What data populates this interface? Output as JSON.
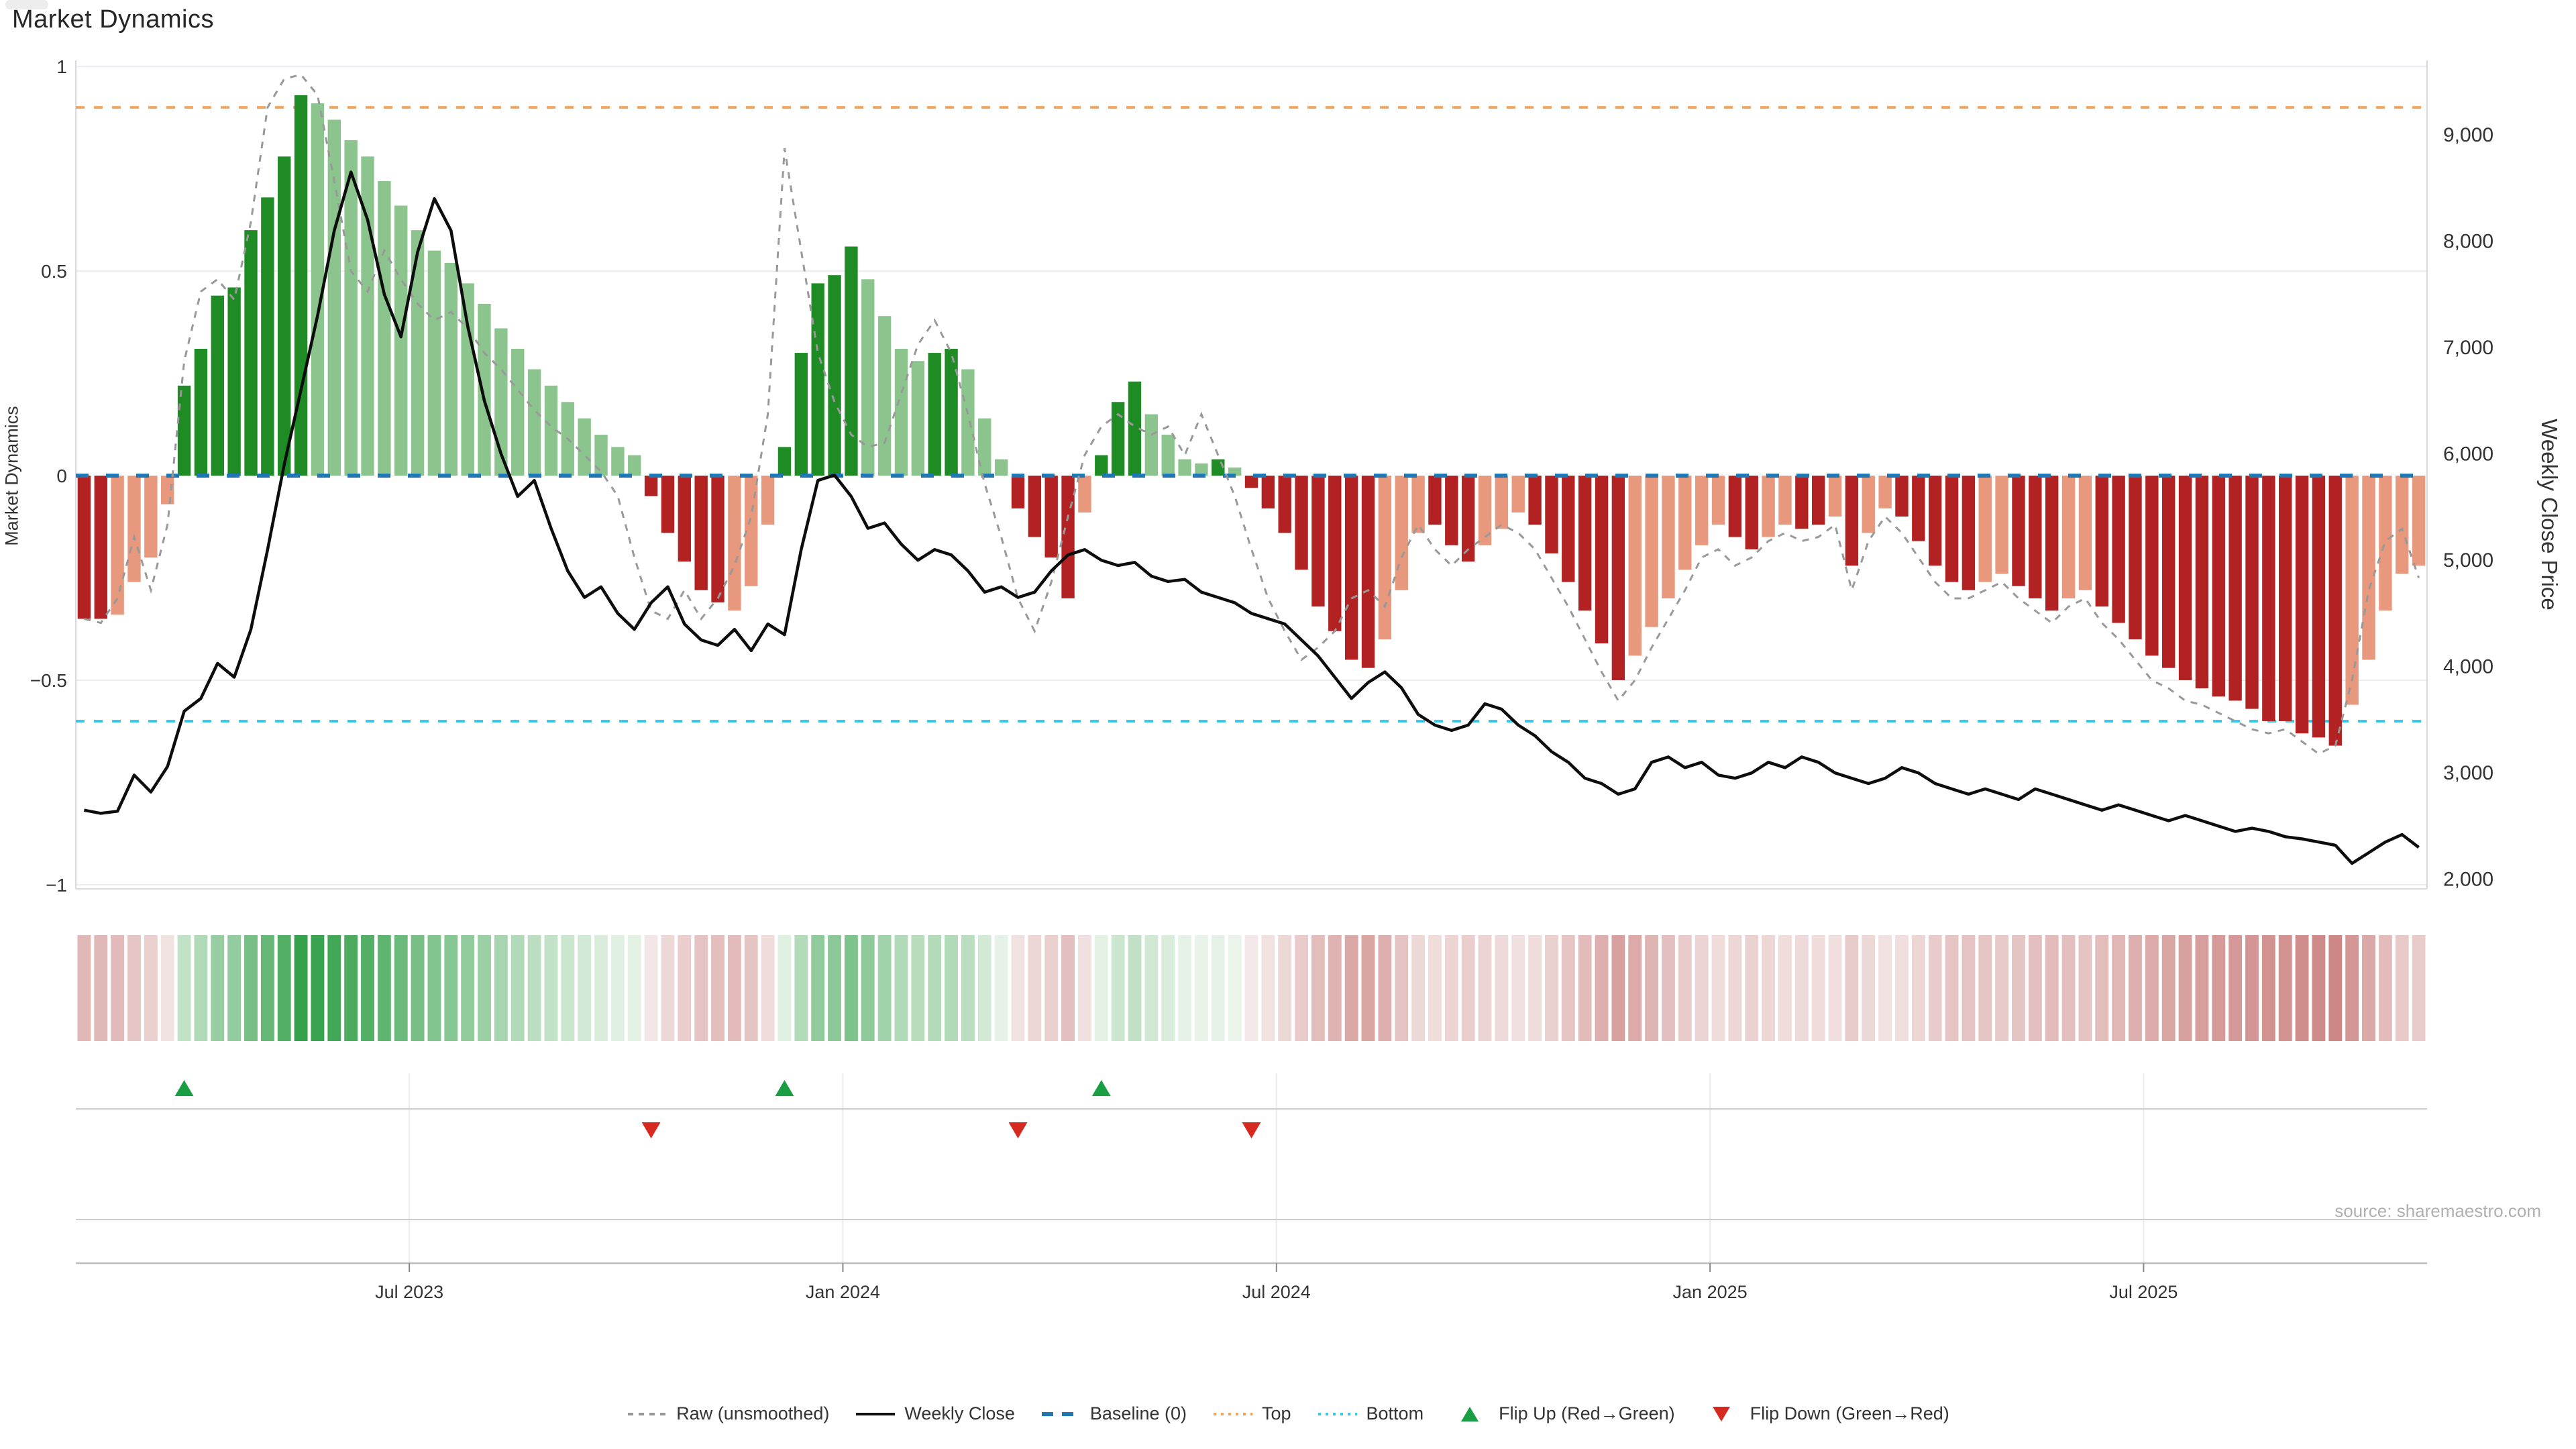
{
  "title": "Market Dynamics",
  "source_note": "source: sharemaestro.com",
  "left_axis": {
    "title": "Market Dynamics",
    "tick_values": [
      1,
      0.5,
      0,
      -0.5,
      -1
    ],
    "tick_labels": [
      "1",
      "0.5",
      "0",
      "−0.5",
      "−1"
    ]
  },
  "right_axis": {
    "title": "Weekly Close Price",
    "tick_values": [
      2000,
      3000,
      4000,
      5000,
      6000,
      7000,
      8000,
      9000
    ],
    "tick_labels": [
      "2,000",
      "3,000",
      "4,000",
      "5,000",
      "6,000",
      "7,000",
      "8,000",
      "9,000"
    ]
  },
  "x_axis": {
    "tick_weeks": [
      19.5,
      45.5,
      71.5,
      97.5,
      123.5
    ],
    "tick_labels": [
      "Jul 2023",
      "Jan 2024",
      "Jul 2024",
      "Jan 2025",
      "Jul 2025"
    ]
  },
  "legend": {
    "items": [
      {
        "swatch": "dashed-line",
        "color": "#999999",
        "label": "Raw (unsmoothed)"
      },
      {
        "swatch": "solid-line",
        "color": "#111111",
        "label": "Weekly Close"
      },
      {
        "swatch": "dash-pair",
        "color": "#1f77b4",
        "label": "Baseline (0)"
      },
      {
        "swatch": "dotted-line",
        "color": "#f2a45f",
        "label": "Top"
      },
      {
        "swatch": "dotted-line",
        "color": "#3cc9e8",
        "label": "Bottom"
      },
      {
        "swatch": "triangle-up",
        "color": "#1a9e44",
        "label": "Flip Up (Red→Green)"
      },
      {
        "swatch": "triangle-down",
        "color": "#d62a20",
        "label": "Flip Down (Green→Red)"
      }
    ]
  },
  "colors": {
    "bar_pos_strong": "#1f8b24",
    "bar_pos_soft": "#8cc48e",
    "bar_neg_strong": "#b22222",
    "bar_neg_soft": "#e8987c",
    "baseline": "#1f77b4",
    "top_line": "#f2a45f",
    "bottom_line": "#3cc9e8",
    "raw_line": "#999999",
    "close_line": "#0d0d0d",
    "flip_up": "#1a9e44",
    "flip_down": "#d62a20",
    "grid": "#ececf2",
    "spine": "#d8d8de",
    "panel_line": "#cccccc",
    "axis_line": "#bbbbbb",
    "tick_text": "#333333"
  },
  "chart_data": {
    "type": "bar+line combo with heatmap strip and flip markers",
    "frequency": "weekly",
    "weeks": 141,
    "left_ylim": [
      -1.01,
      1.015
    ],
    "right_ylim": [
      1910,
      9700
    ],
    "baseline": 0,
    "top_threshold": 0.9,
    "bottom_threshold": -0.6,
    "grid": "horizontal only in main panel",
    "legend_position": "bottom center",
    "oscillator_values": [
      -0.35,
      -0.35,
      -0.34,
      -0.26,
      -0.2,
      -0.07,
      0.22,
      0.31,
      0.44,
      0.46,
      0.6,
      0.68,
      0.78,
      0.93,
      0.91,
      0.87,
      0.82,
      0.78,
      0.72,
      0.66,
      0.6,
      0.55,
      0.52,
      0.47,
      0.42,
      0.36,
      0.31,
      0.26,
      0.22,
      0.18,
      0.14,
      0.1,
      0.07,
      0.05,
      -0.05,
      -0.14,
      -0.21,
      -0.28,
      -0.31,
      -0.33,
      -0.27,
      -0.12,
      0.07,
      0.3,
      0.47,
      0.49,
      0.56,
      0.48,
      0.39,
      0.31,
      0.28,
      0.3,
      0.31,
      0.26,
      0.14,
      0.04,
      -0.08,
      -0.15,
      -0.2,
      -0.3,
      -0.09,
      0.05,
      0.18,
      0.23,
      0.15,
      0.1,
      0.04,
      0.03,
      0.04,
      0.02,
      -0.03,
      -0.08,
      -0.14,
      -0.23,
      -0.32,
      -0.38,
      -0.45,
      -0.47,
      -0.4,
      -0.28,
      -0.14,
      -0.12,
      -0.17,
      -0.21,
      -0.17,
      -0.13,
      -0.09,
      -0.12,
      -0.19,
      -0.26,
      -0.33,
      -0.41,
      -0.5,
      -0.44,
      -0.37,
      -0.3,
      -0.23,
      -0.17,
      -0.12,
      -0.15,
      -0.18,
      -0.15,
      -0.12,
      -0.13,
      -0.12,
      -0.1,
      -0.22,
      -0.14,
      -0.08,
      -0.1,
      -0.16,
      -0.22,
      -0.26,
      -0.28,
      -0.26,
      -0.24,
      -0.27,
      -0.3,
      -0.33,
      -0.3,
      -0.28,
      -0.32,
      -0.36,
      -0.4,
      -0.44,
      -0.47,
      -0.5,
      -0.52,
      -0.54,
      -0.55,
      -0.57,
      -0.6,
      -0.6,
      -0.63,
      -0.64,
      -0.66,
      -0.56,
      -0.45,
      -0.33,
      -0.24,
      -0.22
    ],
    "oscillator_tone": [
      "R",
      "R",
      "r",
      "r",
      "r",
      "r",
      "G",
      "G",
      "G",
      "G",
      "G",
      "G",
      "G",
      "G",
      "g",
      "g",
      "g",
      "g",
      "g",
      "g",
      "g",
      "g",
      "g",
      "g",
      "g",
      "g",
      "g",
      "g",
      "g",
      "g",
      "g",
      "g",
      "g",
      "g",
      "R",
      "R",
      "R",
      "R",
      "R",
      "r",
      "r",
      "r",
      "G",
      "G",
      "G",
      "G",
      "G",
      "g",
      "g",
      "g",
      "g",
      "G",
      "G",
      "g",
      "g",
      "g",
      "R",
      "R",
      "R",
      "R",
      "r",
      "G",
      "G",
      "G",
      "g",
      "g",
      "g",
      "g",
      "G",
      "g",
      "R",
      "R",
      "R",
      "R",
      "R",
      "R",
      "R",
      "R",
      "r",
      "r",
      "r",
      "R",
      "R",
      "R",
      "r",
      "r",
      "r",
      "R",
      "R",
      "R",
      "R",
      "R",
      "R",
      "r",
      "r",
      "r",
      "r",
      "r",
      "r",
      "R",
      "R",
      "r",
      "r",
      "R",
      "R",
      "r",
      "R",
      "r",
      "r",
      "R",
      "R",
      "R",
      "R",
      "R",
      "r",
      "r",
      "R",
      "R",
      "R",
      "r",
      "r",
      "R",
      "R",
      "R",
      "R",
      "R",
      "R",
      "R",
      "R",
      "R",
      "R",
      "R",
      "R",
      "R",
      "R",
      "R",
      "r",
      "r",
      "r",
      "r",
      "r"
    ],
    "raw_values": [
      -0.35,
      -0.36,
      -0.3,
      -0.15,
      -0.28,
      -0.12,
      0.28,
      0.45,
      0.48,
      0.43,
      0.62,
      0.9,
      0.97,
      0.98,
      0.93,
      0.72,
      0.5,
      0.45,
      0.55,
      0.48,
      0.42,
      0.38,
      0.4,
      0.36,
      0.3,
      0.26,
      0.21,
      0.16,
      0.12,
      0.09,
      0.05,
      0.01,
      -0.05,
      -0.2,
      -0.33,
      -0.35,
      -0.28,
      -0.35,
      -0.3,
      -0.22,
      -0.1,
      0.15,
      0.8,
      0.55,
      0.3,
      0.18,
      0.1,
      0.07,
      0.08,
      0.2,
      0.32,
      0.38,
      0.3,
      0.15,
      -0.02,
      -0.15,
      -0.3,
      -0.38,
      -0.26,
      -0.1,
      0.05,
      0.12,
      0.15,
      0.12,
      0.1,
      0.12,
      0.05,
      0.15,
      0.05,
      -0.05,
      -0.18,
      -0.3,
      -0.38,
      -0.45,
      -0.42,
      -0.38,
      -0.3,
      -0.28,
      -0.32,
      -0.2,
      -0.12,
      -0.18,
      -0.22,
      -0.18,
      -0.15,
      -0.12,
      -0.14,
      -0.18,
      -0.25,
      -0.32,
      -0.4,
      -0.48,
      -0.55,
      -0.5,
      -0.42,
      -0.35,
      -0.28,
      -0.2,
      -0.18,
      -0.22,
      -0.2,
      -0.16,
      -0.14,
      -0.16,
      -0.15,
      -0.12,
      -0.28,
      -0.16,
      -0.1,
      -0.14,
      -0.2,
      -0.26,
      -0.3,
      -0.3,
      -0.28,
      -0.26,
      -0.3,
      -0.33,
      -0.36,
      -0.32,
      -0.3,
      -0.36,
      -0.4,
      -0.45,
      -0.5,
      -0.52,
      -0.55,
      -0.56,
      -0.58,
      -0.6,
      -0.62,
      -0.63,
      -0.62,
      -0.65,
      -0.68,
      -0.66,
      -0.5,
      -0.28,
      -0.16,
      -0.13,
      -0.25
    ],
    "close_values": [
      2650,
      2620,
      2640,
      2980,
      2820,
      3060,
      3580,
      3700,
      4030,
      3900,
      4350,
      5100,
      5900,
      6600,
      7300,
      8100,
      8650,
      8200,
      7500,
      7100,
      7900,
      8400,
      8100,
      7200,
      6500,
      6000,
      5600,
      5750,
      5300,
      4900,
      4650,
      4750,
      4500,
      4350,
      4600,
      4750,
      4400,
      4250,
      4200,
      4350,
      4150,
      4400,
      4300,
      5100,
      5750,
      5800,
      5600,
      5300,
      5350,
      5150,
      5000,
      5100,
      5050,
      4900,
      4700,
      4750,
      4650,
      4700,
      4900,
      5050,
      5100,
      5000,
      4950,
      4980,
      4850,
      4800,
      4820,
      4700,
      4650,
      4600,
      4500,
      4450,
      4400,
      4250,
      4100,
      3900,
      3700,
      3850,
      3950,
      3800,
      3550,
      3450,
      3400,
      3450,
      3650,
      3600,
      3450,
      3350,
      3200,
      3100,
      2950,
      2900,
      2800,
      2850,
      3100,
      3150,
      3050,
      3100,
      2980,
      2950,
      3000,
      3100,
      3050,
      3150,
      3100,
      3000,
      2950,
      2900,
      2950,
      3050,
      3000,
      2900,
      2850,
      2800,
      2850,
      2800,
      2750,
      2850,
      2800,
      2750,
      2700,
      2650,
      2700,
      2650,
      2600,
      2550,
      2600,
      2550,
      2500,
      2450,
      2480,
      2450,
      2400,
      2380,
      2350,
      2320,
      2150,
      2250,
      2350,
      2420,
      2300
    ],
    "flip_up_weeks": [
      6,
      42,
      61
    ],
    "flip_down_weeks": [
      34,
      56,
      70
    ],
    "heatmap": "diverging red-white-green strip, one cell per week, colored by oscillator value"
  }
}
